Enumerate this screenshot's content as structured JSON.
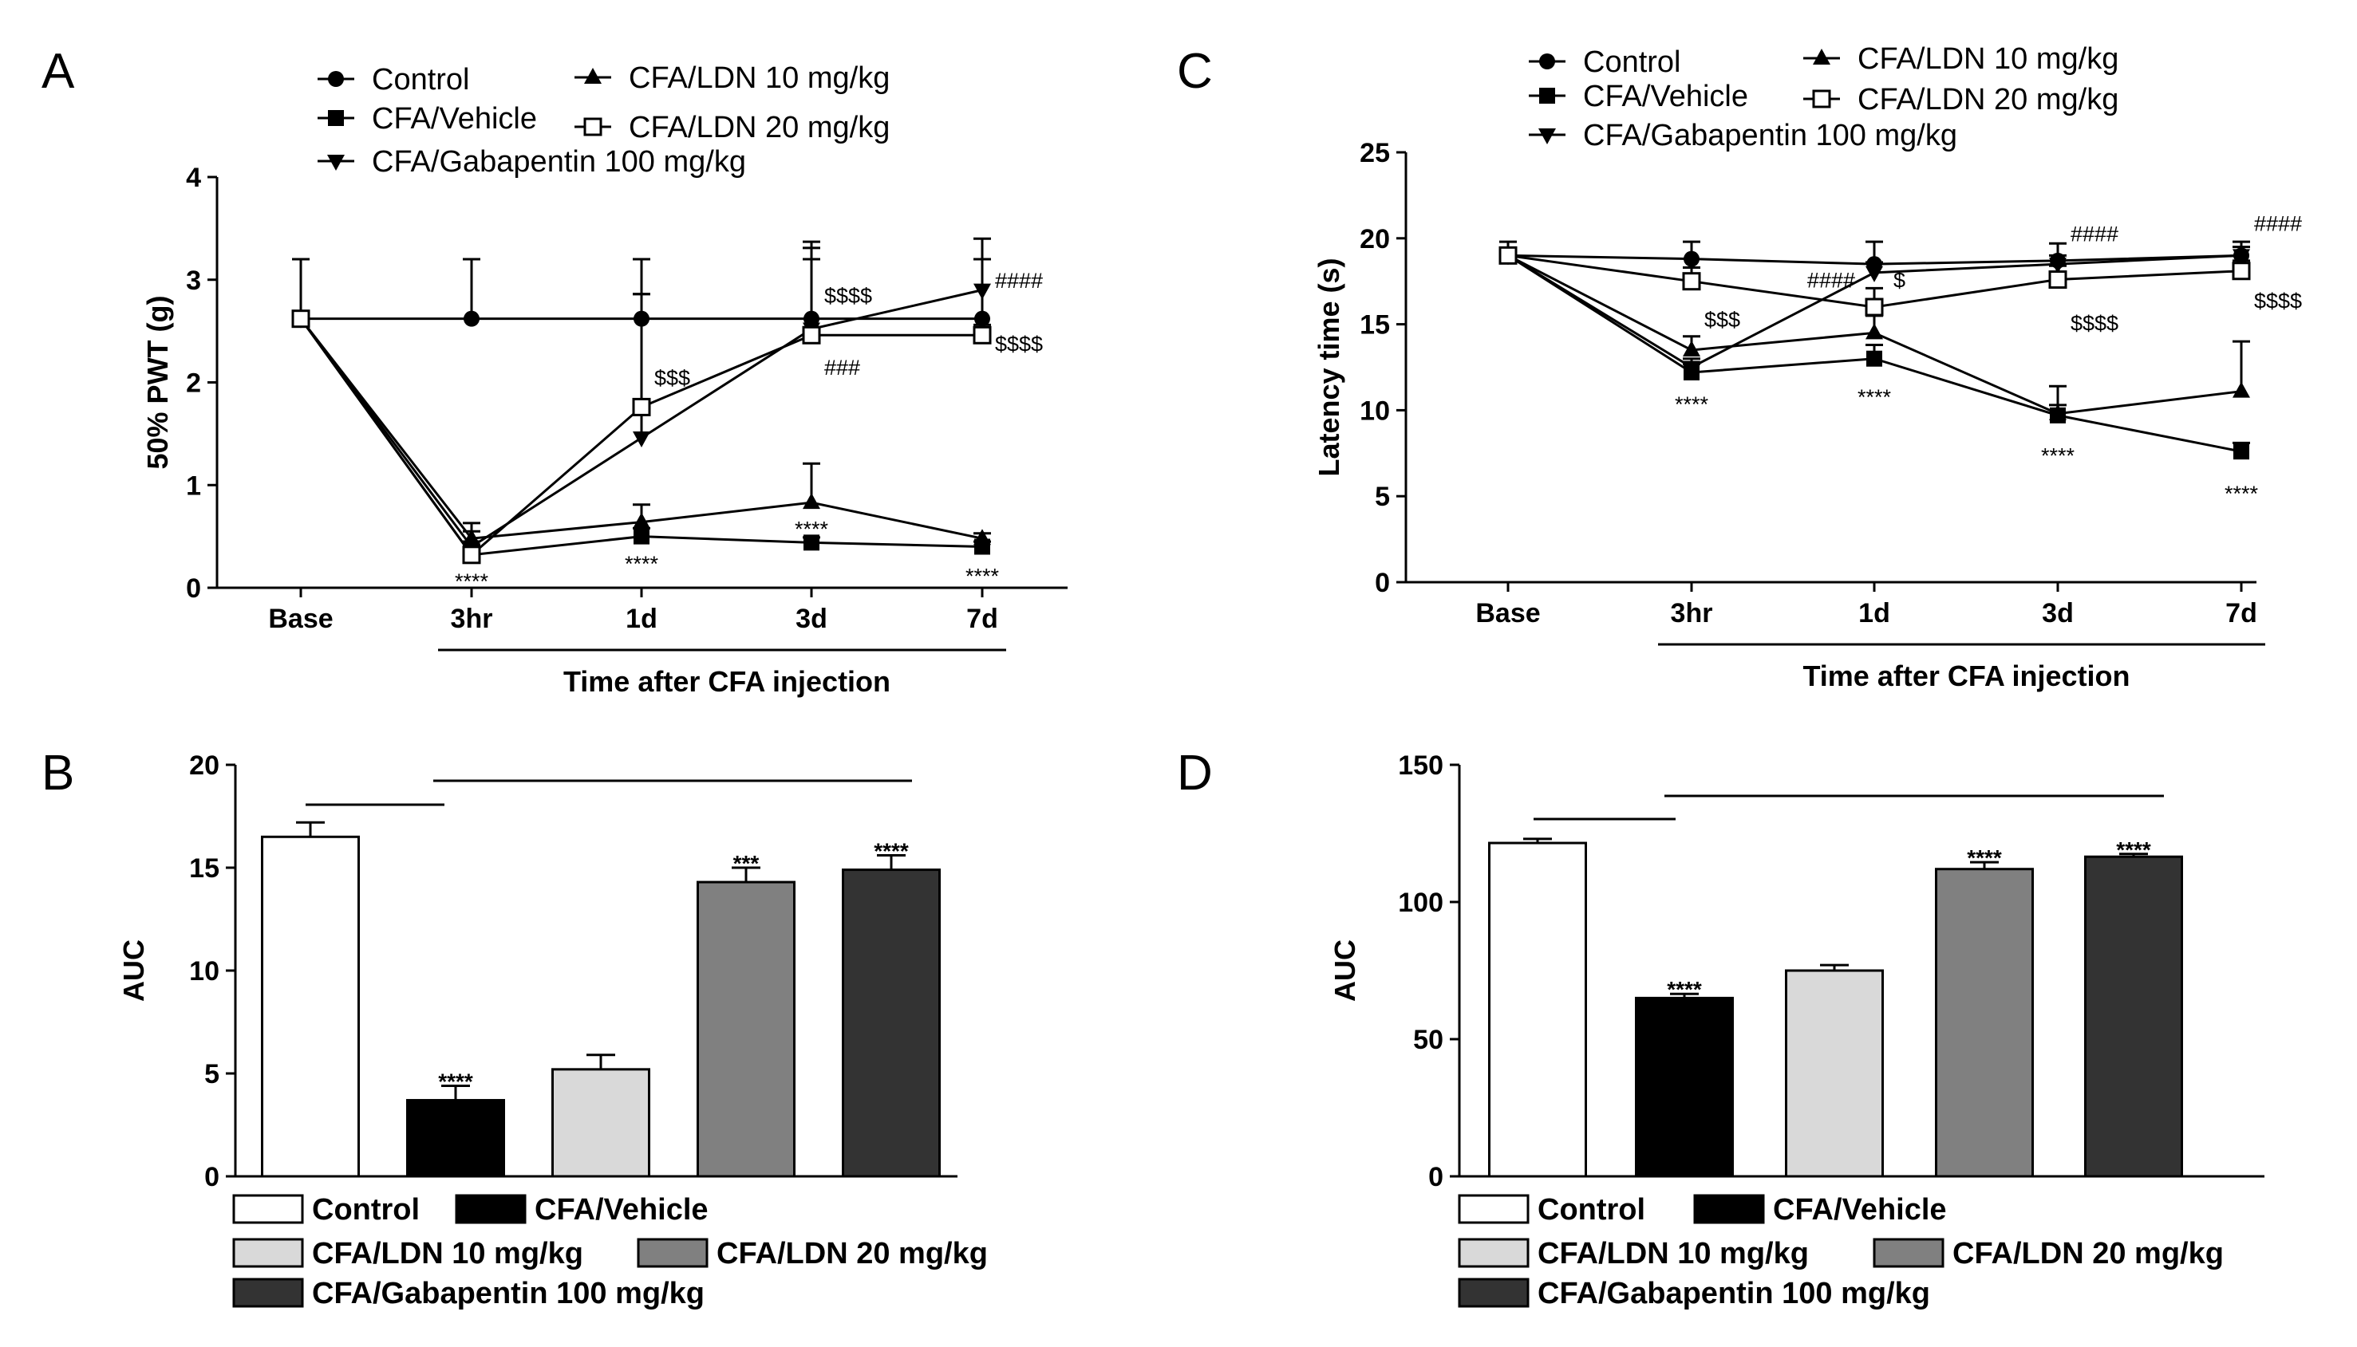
{
  "colors": {
    "control": "#ffffff",
    "cfa_vehicle": "#000000",
    "cfa_ldn10": "#d9d9d9",
    "cfa_ldn20": "#808080",
    "cfa_gabapentin": "#333333",
    "axis": "#000000"
  },
  "chart_data": [
    {
      "panel": "A",
      "type": "line",
      "xlabel": "Time after CFA injection",
      "ylabel": "50% PWT (g)",
      "categories": [
        "Base",
        "3hr",
        "1d",
        "3d",
        "7d"
      ],
      "ylim": [
        0,
        4
      ],
      "yticks": [
        "0",
        "1",
        "2",
        "3",
        "4"
      ],
      "legend_placement": "top",
      "series": [
        {
          "name": "Control",
          "marker": "circle",
          "values": [
            2.62,
            2.62,
            2.62,
            2.62,
            2.62
          ],
          "errors": [
            0.58,
            0.58,
            0.58,
            0.58,
            0.58
          ]
        },
        {
          "name": "CFA/Vehicle",
          "marker": "square",
          "values": [
            2.62,
            0.32,
            0.5,
            0.44,
            0.4
          ],
          "errors": [
            0,
            0.08,
            0.08,
            0.05,
            0.05
          ]
        },
        {
          "name": "CFA/Gabapentin 100 mg/kg",
          "marker": "triangle-down",
          "values": [
            2.62,
            0.4,
            1.46,
            2.52,
            2.9
          ],
          "errors": [
            0,
            0.15,
            1.4,
            0.85,
            0.5
          ]
        },
        {
          "name": "CFA/LDN 10 mg/kg",
          "marker": "triangle-up",
          "values": [
            2.62,
            0.48,
            0.64,
            0.83,
            0.48
          ],
          "errors": [
            0,
            0.15,
            0.17,
            0.38,
            0.05
          ]
        },
        {
          "name": "CFA/LDN 20 mg/kg",
          "marker": "open-square",
          "values": [
            2.62,
            0.32,
            1.76,
            2.46,
            2.46
          ],
          "errors": [
            0,
            0.1,
            1.1,
            0.85,
            0.1
          ]
        }
      ],
      "annotations": [
        {
          "text": "****",
          "category": "3hr",
          "value": 0.07
        },
        {
          "text": "****",
          "category": "1d",
          "value": 0.24
        },
        {
          "text": "****",
          "category": "3d",
          "value": 0.58
        },
        {
          "text": "****",
          "category": "7d",
          "value": 0.12
        },
        {
          "text": "$$$",
          "category": "1d",
          "value": 2.05
        },
        {
          "text": "$$$$",
          "category": "3d",
          "value": 2.85
        },
        {
          "text": "###",
          "category": "3d",
          "value": 2.15
        },
        {
          "text": "####",
          "category": "7d",
          "value": 3.0
        },
        {
          "text": "$$$$",
          "category": "7d",
          "value": 2.38
        }
      ]
    },
    {
      "panel": "B",
      "type": "bar",
      "ylabel": "AUC",
      "categories": [
        "Control",
        "CFA/Vehicle",
        "CFA/LDN 10 mg/kg",
        "CFA/LDN 20 mg/kg",
        "CFA/Gabapentin 100 mg/kg"
      ],
      "values": [
        16.5,
        3.7,
        5.2,
        14.3,
        14.9
      ],
      "errors": [
        0.7,
        0.7,
        0.7,
        0.7,
        0.7
      ],
      "ylim": [
        0,
        20
      ],
      "yticks": [
        "0",
        "5",
        "10",
        "15",
        "20"
      ],
      "bar_labels": [
        "",
        "****",
        "",
        "***",
        "****"
      ],
      "legend_placement": "bottom"
    },
    {
      "panel": "C",
      "type": "line",
      "xlabel": "Time after CFA injection",
      "ylabel": "Latency time (s)",
      "categories": [
        "Base",
        "3hr",
        "1d",
        "3d",
        "7d"
      ],
      "ylim": [
        0,
        25
      ],
      "yticks": [
        "0",
        "5",
        "10",
        "15",
        "20",
        "25"
      ],
      "legend_placement": "top",
      "series": [
        {
          "name": "Control",
          "marker": "circle",
          "values": [
            19.0,
            18.8,
            18.5,
            18.7,
            19.0
          ],
          "errors": [
            0.8,
            1.0,
            1.3,
            1.0,
            0.8
          ]
        },
        {
          "name": "CFA/Vehicle",
          "marker": "square",
          "values": [
            19.0,
            12.2,
            13.0,
            9.7,
            7.6
          ],
          "errors": [
            0,
            0.5,
            0.8,
            0.6,
            0.5
          ]
        },
        {
          "name": "CFA/Gabapentin 100 mg/kg",
          "marker": "triangle-down",
          "values": [
            19.0,
            12.5,
            18.0,
            18.5,
            19.0
          ],
          "errors": [
            0,
            0.5,
            0.6,
            0.5,
            0.5
          ]
        },
        {
          "name": "CFA/LDN 10 mg/kg",
          "marker": "triangle-up",
          "values": [
            19.0,
            13.5,
            14.5,
            9.8,
            11.1
          ],
          "errors": [
            0,
            0.8,
            1.0,
            1.6,
            2.9
          ]
        },
        {
          "name": "CFA/LDN 20 mg/kg",
          "marker": "open-square",
          "values": [
            19.0,
            17.5,
            16.0,
            17.6,
            18.1
          ],
          "errors": [
            0,
            0.8,
            1.1,
            0.8,
            0.6
          ]
        }
      ],
      "annotations": [
        {
          "text": "****",
          "category": "3hr",
          "value": 10.4
        },
        {
          "text": "****",
          "category": "1d",
          "value": 10.8
        },
        {
          "text": "****",
          "category": "3d",
          "value": 7.4
        },
        {
          "text": "****",
          "category": "7d",
          "value": 5.2
        },
        {
          "text": "$$$",
          "category": "3hr",
          "value": 15.3
        },
        {
          "text": "####",
          "category": "1d",
          "value": 17.6,
          "offset": "left"
        },
        {
          "text": "$",
          "category": "1d",
          "value": 17.6,
          "offset": "right"
        },
        {
          "text": "####",
          "category": "3d",
          "value": 20.3
        },
        {
          "text": "$$$$",
          "category": "3d",
          "value": 15.1
        },
        {
          "text": "####",
          "category": "7d",
          "value": 20.9
        },
        {
          "text": "$$$$",
          "category": "7d",
          "value": 16.4
        }
      ]
    },
    {
      "panel": "D",
      "type": "bar",
      "ylabel": "AUC",
      "categories": [
        "Control",
        "CFA/Vehicle",
        "CFA/LDN 10 mg/kg",
        "CFA/LDN 20 mg/kg",
        "CFA/Gabapentin 100 mg/kg"
      ],
      "values": [
        121.5,
        65.0,
        75.0,
        112.0,
        116.5
      ],
      "errors": [
        1.5,
        1.5,
        2.0,
        2.5,
        1.0
      ],
      "ylim": [
        0,
        150
      ],
      "yticks": [
        "0",
        "50",
        "100",
        "150"
      ],
      "bar_labels": [
        "",
        "****",
        "",
        "****",
        "****"
      ],
      "legend_placement": "bottom"
    }
  ]
}
